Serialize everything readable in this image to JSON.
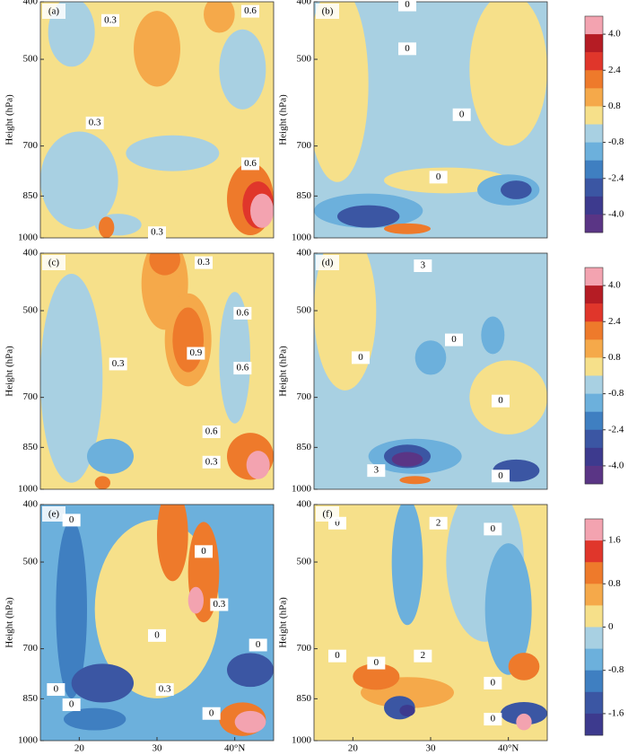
{
  "chart_data": [
    {
      "type": "contour",
      "label": "(a)",
      "ylabel": "Height (hPa)",
      "ylog": true,
      "ylim": [
        1000,
        400
      ],
      "yticks": [
        400,
        500,
        700,
        850,
        1000
      ],
      "xlim": [
        15,
        45
      ],
      "background": 0.4,
      "blobs": [
        {
          "lat": 20,
          "p": 800,
          "dlat": 5,
          "dp": 150,
          "value": -0.4
        },
        {
          "lat": 19,
          "p": 450,
          "dlat": 3,
          "dp": 60,
          "value": -0.4
        },
        {
          "lat": 41,
          "p": 520,
          "dlat": 3,
          "dp": 80,
          "value": -0.4
        },
        {
          "lat": 32,
          "p": 720,
          "dlat": 6,
          "dp": 50,
          "value": -0.4
        },
        {
          "lat": 25,
          "p": 950,
          "dlat": 3,
          "dp": 40,
          "value": -0.4
        },
        {
          "lat": 30,
          "p": 480,
          "dlat": 3,
          "dp": 70,
          "value": 1.2
        },
        {
          "lat": 38,
          "p": 420,
          "dlat": 2,
          "dp": 30,
          "value": 1.2
        },
        {
          "lat": 42,
          "p": 860,
          "dlat": 3,
          "dp": 120,
          "value": 2.0
        },
        {
          "lat": 43,
          "p": 880,
          "dlat": 2,
          "dp": 80,
          "value": 3.0
        },
        {
          "lat": 43.5,
          "p": 900,
          "dlat": 1.5,
          "dp": 60,
          "value": 4.5
        },
        {
          "lat": 23.5,
          "p": 960,
          "dlat": 1,
          "dp": 40,
          "value": 2.0
        }
      ],
      "contour_labels": [
        {
          "lat": 24,
          "p": 430,
          "value": 0.3
        },
        {
          "lat": 42,
          "p": 415,
          "value": 0.6
        },
        {
          "lat": 22,
          "p": 640,
          "value": 0.3
        },
        {
          "lat": 42,
          "p": 750,
          "value": 0.6
        },
        {
          "lat": 30,
          "p": 980,
          "value": 0.3
        }
      ]
    },
    {
      "type": "contour",
      "label": "(b)",
      "ylabel": "Height (hPa)",
      "ylog": true,
      "ylim": [
        1000,
        400
      ],
      "yticks": [
        400,
        500,
        700,
        850,
        1000
      ],
      "xlim": [
        15,
        45
      ],
      "background": -0.4,
      "blobs": [
        {
          "lat": 18,
          "p": 550,
          "dlat": 4,
          "dp": 200,
          "value": 0.4
        },
        {
          "lat": 40,
          "p": 520,
          "dlat": 5,
          "dp": 150,
          "value": 0.4
        },
        {
          "lat": 32,
          "p": 800,
          "dlat": 8,
          "dp": 40,
          "value": 0.4
        },
        {
          "lat": 22,
          "p": 900,
          "dlat": 7,
          "dp": 60,
          "value": -1.2
        },
        {
          "lat": 22,
          "p": 920,
          "dlat": 4,
          "dp": 40,
          "value": -2.8
        },
        {
          "lat": 40,
          "p": 830,
          "dlat": 4,
          "dp": 50,
          "value": -1.2
        },
        {
          "lat": 41,
          "p": 830,
          "dlat": 2,
          "dp": 30,
          "value": -2.8
        },
        {
          "lat": 27,
          "p": 965,
          "dlat": 3,
          "dp": 20,
          "value": 2.0
        }
      ],
      "contour_labels": [
        {
          "lat": 27,
          "p": 480,
          "value": 0
        },
        {
          "lat": 34,
          "p": 620,
          "value": 0
        },
        {
          "lat": 31,
          "p": 790,
          "value": 0
        },
        {
          "lat": 27,
          "p": 405,
          "value": 0
        }
      ],
      "colorbar": {
        "levels": [
          4.0,
          3.2,
          2.4,
          1.6,
          0.8,
          0,
          -0.8,
          -1.6,
          -2.4,
          -3.2,
          -4.0
        ],
        "colors": [
          "#f3a3b0",
          "#b51c24",
          "#e0362b",
          "#ee7a2b",
          "#f5a94a",
          "#f6e08a",
          "#a8d0e2",
          "#6cb0dc",
          "#3f7fc1",
          "#3b56a3",
          "#3d3a8e",
          "#5a3585"
        ],
        "ticks": [
          {
            "value": 4,
            "label": "4.0"
          },
          2.4,
          0.8,
          -0.8,
          -2.4,
          {
            "value": -4,
            "label": "-4.0"
          }
        ]
      }
    },
    {
      "type": "contour",
      "label": "(c)",
      "ylabel": "Height (hPa)",
      "ylog": true,
      "ylim": [
        1000,
        400
      ],
      "yticks": [
        400,
        500,
        700,
        850,
        1000
      ],
      "xlim": [
        15,
        45
      ],
      "background": 0.4,
      "blobs": [
        {
          "lat": 19,
          "p": 650,
          "dlat": 4,
          "dp": 250,
          "value": -0.4
        },
        {
          "lat": 40,
          "p": 600,
          "dlat": 2,
          "dp": 150,
          "value": -0.4
        },
        {
          "lat": 31,
          "p": 450,
          "dlat": 3,
          "dp": 80,
          "value": 1.2
        },
        {
          "lat": 34,
          "p": 560,
          "dlat": 3,
          "dp": 100,
          "value": 1.2
        },
        {
          "lat": 31,
          "p": 410,
          "dlat": 2,
          "dp": 25,
          "value": 2.0
        },
        {
          "lat": 34,
          "p": 560,
          "dlat": 2,
          "dp": 70,
          "value": 2.0
        },
        {
          "lat": 24,
          "p": 880,
          "dlat": 3,
          "dp": 60,
          "value": -1.2
        },
        {
          "lat": 42,
          "p": 880,
          "dlat": 3,
          "dp": 80,
          "value": 2.0
        },
        {
          "lat": 43,
          "p": 910,
          "dlat": 1.5,
          "dp": 50,
          "value": 4.5
        },
        {
          "lat": 23,
          "p": 975,
          "dlat": 1,
          "dp": 25,
          "value": 2.0
        }
      ],
      "contour_labels": [
        {
          "lat": 36,
          "p": 415,
          "value": 0.3
        },
        {
          "lat": 41,
          "p": 505,
          "value": 0.6
        },
        {
          "lat": 35,
          "p": 590,
          "value": 0.9
        },
        {
          "lat": 41,
          "p": 625,
          "value": 0.6
        },
        {
          "lat": 25,
          "p": 615,
          "value": 0.3
        },
        {
          "lat": 37,
          "p": 800,
          "value": 0.6
        },
        {
          "lat": 37,
          "p": 900,
          "value": 0.3
        }
      ]
    },
    {
      "type": "contour",
      "label": "(d)",
      "ylabel": "Height (hPa)",
      "ylog": true,
      "ylim": [
        1000,
        400
      ],
      "yticks": [
        400,
        500,
        700,
        850,
        1000
      ],
      "xlim": [
        15,
        45
      ],
      "background": -0.4,
      "blobs": [
        {
          "lat": 19,
          "p": 500,
          "dlat": 4,
          "dp": 150,
          "value": 0.4
        },
        {
          "lat": 40,
          "p": 700,
          "dlat": 5,
          "dp": 100,
          "value": 0.4
        },
        {
          "lat": 30,
          "p": 600,
          "dlat": 2,
          "dp": 40,
          "value": -1.2
        },
        {
          "lat": 38,
          "p": 550,
          "dlat": 1.5,
          "dp": 40,
          "value": -1.2
        },
        {
          "lat": 28,
          "p": 880,
          "dlat": 6,
          "dp": 60,
          "value": -1.2
        },
        {
          "lat": 27,
          "p": 880,
          "dlat": 3,
          "dp": 40,
          "value": -2.8
        },
        {
          "lat": 27,
          "p": 890,
          "dlat": 2,
          "dp": 25,
          "value": -4.5
        },
        {
          "lat": 41,
          "p": 930,
          "dlat": 3,
          "dp": 40,
          "value": -2.8
        },
        {
          "lat": 28,
          "p": 965,
          "dlat": 2,
          "dp": 15,
          "value": 2.0
        }
      ],
      "contour_labels": [
        {
          "lat": 29,
          "p": 420,
          "value": 3
        },
        {
          "lat": 33,
          "p": 560,
          "value": 0
        },
        {
          "lat": 21,
          "p": 600,
          "value": 0
        },
        {
          "lat": 39,
          "p": 710,
          "value": 0
        },
        {
          "lat": 23,
          "p": 930,
          "value": 3
        },
        {
          "lat": 39,
          "p": 950,
          "value": 0
        }
      ],
      "colorbar": {
        "levels": [
          4.0,
          3.2,
          2.4,
          1.6,
          0.8,
          0,
          -0.8,
          -1.6,
          -2.4,
          -3.2,
          -4.0
        ],
        "colors": [
          "#f3a3b0",
          "#b51c24",
          "#e0362b",
          "#ee7a2b",
          "#f5a94a",
          "#f6e08a",
          "#a8d0e2",
          "#6cb0dc",
          "#3f7fc1",
          "#3b56a3",
          "#3d3a8e",
          "#5a3585"
        ],
        "ticks": [
          {
            "value": 4,
            "label": "4.0"
          },
          2.4,
          0.8,
          -0.8,
          -2.4,
          {
            "value": -4,
            "label": "-4.0"
          }
        ]
      }
    },
    {
      "type": "contour",
      "label": "(e)",
      "ylabel": "Height (hPa)",
      "ylog": true,
      "ylim": [
        1000,
        400
      ],
      "yticks": [
        400,
        500,
        700,
        850,
        1000
      ],
      "xlim": [
        15,
        45
      ],
      "xticks": [
        20,
        30,
        {
          "value": 40,
          "label": "40°N"
        }
      ],
      "background": -0.4,
      "blobs": [
        {
          "lat": 30,
          "p": 600,
          "dlat": 8,
          "dp": 200,
          "value": 0.2
        },
        {
          "lat": 19,
          "p": 600,
          "dlat": 2,
          "dp": 200,
          "value": -1.0
        },
        {
          "lat": 32,
          "p": 450,
          "dlat": 2,
          "dp": 80,
          "value": 1.2
        },
        {
          "lat": 36,
          "p": 520,
          "dlat": 2,
          "dp": 100,
          "value": 1.2
        },
        {
          "lat": 35,
          "p": 580,
          "dlat": 1,
          "dp": 30,
          "value": 2.0
        },
        {
          "lat": 23,
          "p": 800,
          "dlat": 4,
          "dp": 60,
          "value": -1.4
        },
        {
          "lat": 42,
          "p": 760,
          "dlat": 3,
          "dp": 50,
          "value": -1.4
        },
        {
          "lat": 22,
          "p": 920,
          "dlat": 4,
          "dp": 40,
          "value": -1.0
        },
        {
          "lat": 41,
          "p": 920,
          "dlat": 3,
          "dp": 60,
          "value": 1.0
        },
        {
          "lat": 42,
          "p": 930,
          "dlat": 2,
          "dp": 40,
          "value": 2.0
        }
      ],
      "contour_labels": [
        {
          "lat": 19,
          "p": 425,
          "value": 0
        },
        {
          "lat": 36,
          "p": 480,
          "value": 0
        },
        {
          "lat": 38,
          "p": 590,
          "value": 0.3
        },
        {
          "lat": 30,
          "p": 665,
          "value": 0
        },
        {
          "lat": 43,
          "p": 690,
          "value": 0
        },
        {
          "lat": 17,
          "p": 820,
          "value": 0
        },
        {
          "lat": 19,
          "p": 870,
          "value": 0
        },
        {
          "lat": 31,
          "p": 820,
          "value": 0.3
        },
        {
          "lat": 37,
          "p": 900,
          "value": 0
        }
      ]
    },
    {
      "type": "contour",
      "label": "(f)",
      "ylabel": "Height (hPa)",
      "ylog": true,
      "ylim": [
        1000,
        400
      ],
      "yticks": [
        400,
        500,
        700,
        850,
        1000
      ],
      "xlim": [
        15,
        45
      ],
      "xticks": [
        20,
        30,
        {
          "value": 40,
          "label": "40°N"
        }
      ],
      "background": 0.2,
      "blobs": [
        {
          "lat": 37,
          "p": 500,
          "dlat": 5,
          "dp": 150,
          "value": -0.2
        },
        {
          "lat": 27,
          "p": 500,
          "dlat": 2,
          "dp": 120,
          "value": -0.6
        },
        {
          "lat": 40,
          "p": 600,
          "dlat": 3,
          "dp": 150,
          "value": -0.6
        },
        {
          "lat": 27,
          "p": 830,
          "dlat": 6,
          "dp": 50,
          "value": 0.6
        },
        {
          "lat": 23,
          "p": 780,
          "dlat": 3,
          "dp": 40,
          "value": 1.0
        },
        {
          "lat": 42,
          "p": 750,
          "dlat": 2,
          "dp": 40,
          "value": 1.0
        },
        {
          "lat": 26,
          "p": 880,
          "dlat": 2,
          "dp": 40,
          "value": -1.4
        },
        {
          "lat": 27,
          "p": 890,
          "dlat": 1,
          "dp": 20,
          "value": -2.0
        },
        {
          "lat": 42,
          "p": 900,
          "dlat": 3,
          "dp": 40,
          "value": -1.4
        },
        {
          "lat": 42,
          "p": 930,
          "dlat": 1,
          "dp": 30,
          "value": 2.0
        }
      ],
      "contour_labels": [
        {
          "lat": 18,
          "p": 430,
          "value": 0
        },
        {
          "lat": 31,
          "p": 430,
          "value": 2
        },
        {
          "lat": 38,
          "p": 440,
          "value": 0
        },
        {
          "lat": 18,
          "p": 720,
          "value": 0
        },
        {
          "lat": 23,
          "p": 740,
          "value": 0
        },
        {
          "lat": 29,
          "p": 720,
          "value": 2
        },
        {
          "lat": 38,
          "p": 800,
          "value": 0
        },
        {
          "lat": 38,
          "p": 920,
          "value": 0
        }
      ],
      "colorbar": {
        "levels": [
          1.6,
          1.2,
          0.8,
          0.4,
          0,
          -0.4,
          -0.8,
          -1.2,
          -1.6
        ],
        "colors": [
          "#f3a3b0",
          "#e0362b",
          "#ee7a2b",
          "#f5a94a",
          "#f6e08a",
          "#a8d0e2",
          "#6cb0dc",
          "#3f7fc1",
          "#3b56a3",
          "#3d3a8e"
        ],
        "ticks": [
          1.6,
          0.8,
          0,
          -0.8,
          -1.6
        ]
      }
    }
  ]
}
